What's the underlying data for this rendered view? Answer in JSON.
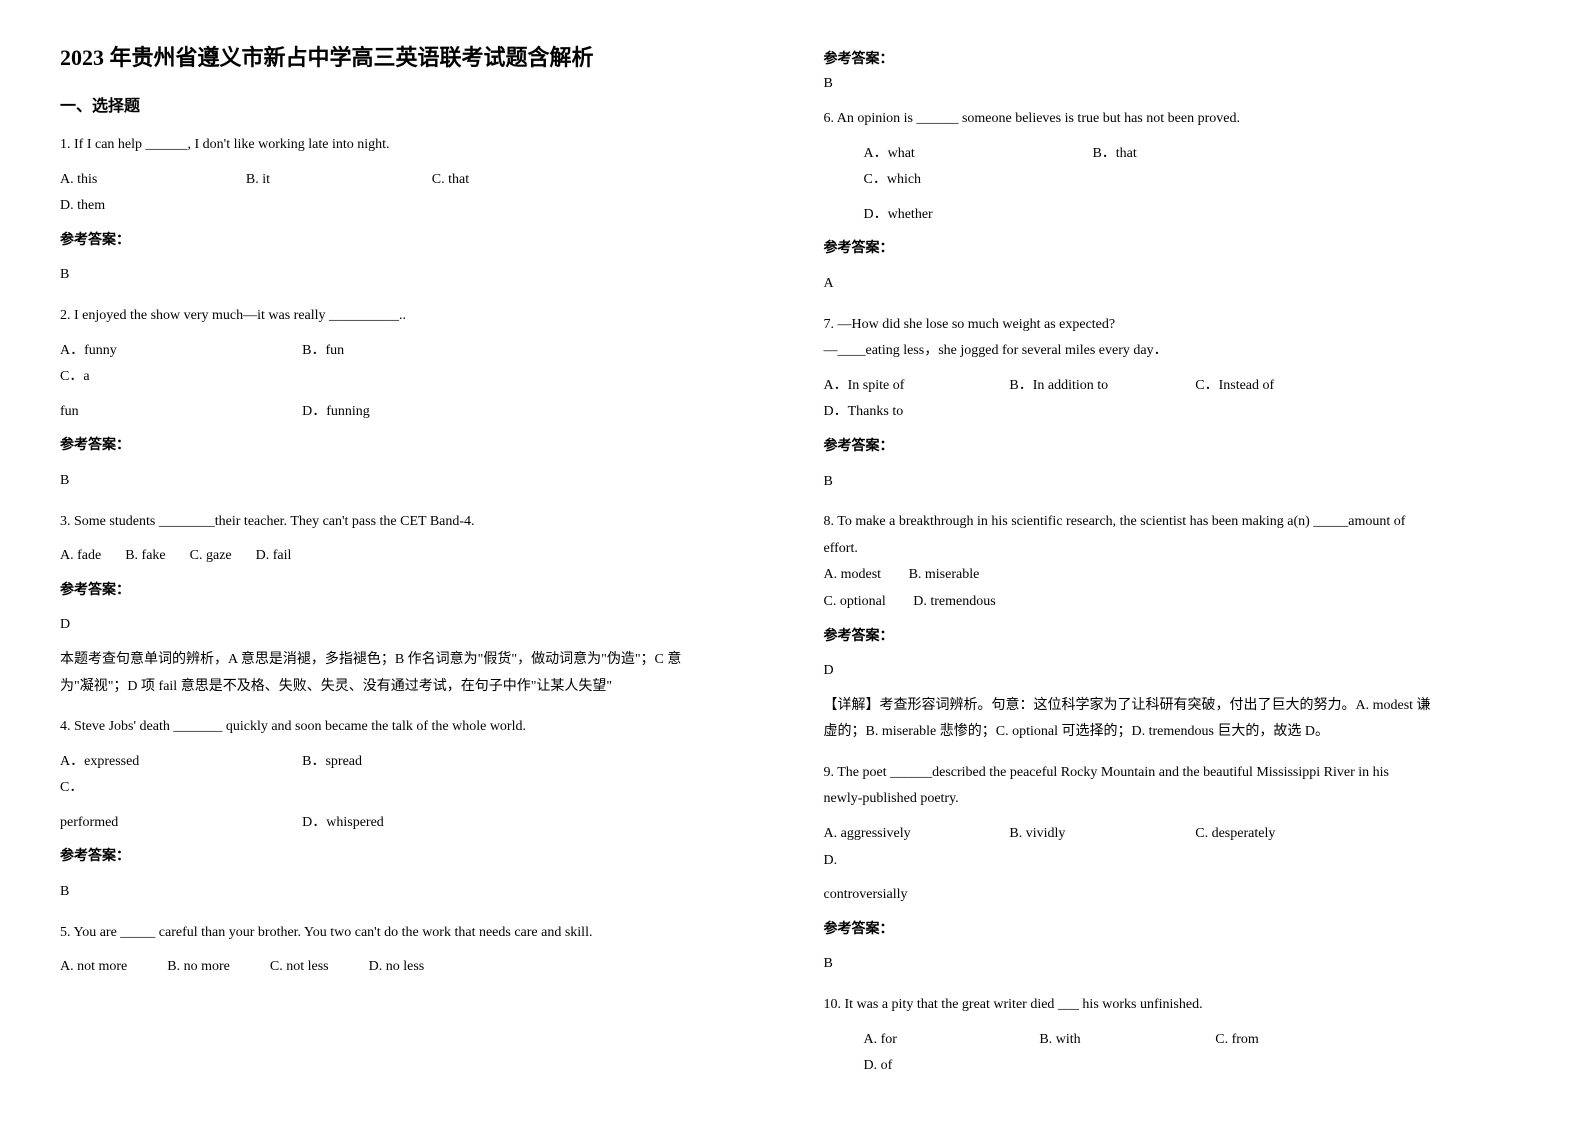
{
  "title": "2023 年贵州省遵义市新占中学高三英语联考试题含解析",
  "section1": "一、选择题",
  "answerLabel": "参考答案：",
  "left": {
    "q1": {
      "stem": "1. If I can help ______, I don't like working late into night.",
      "a": "A. this",
      "b": "B. it",
      "c": "C. that",
      "d": "D. them",
      "ans": "B"
    },
    "q2": {
      "stem": "2. I enjoyed the show very much—it was really __________..",
      "a": "A．funny",
      "b": "B．fun",
      "c": "C．a",
      "line2a": "fun",
      "line2b": "D．funning",
      "ans": "B"
    },
    "q3": {
      "stem": "3. Some students ________their teacher. They can't pass the CET Band-4.",
      "a": "A. fade",
      "b": "B. fake",
      "c": "C. gaze",
      "d": "D. fail",
      "ans": "D",
      "exp1": "本题考查句意单词的辨析，A 意思是消褪，多指褪色；B 作名词意为\"假货\"，做动词意为\"伪造\"；C 意",
      "exp2": "为\"凝视\"；D 项 fail 意思是不及格、失败、失灵、没有通过考试，在句子中作\"让某人失望\""
    },
    "q4": {
      "stem": "4. Steve Jobs' death _______ quickly and soon became the talk of the whole world.",
      "a": "A．expressed",
      "b": "B．spread",
      "c": "C．",
      "line2a": "performed",
      "line2b": "D．whispered",
      "ans": "B"
    },
    "q5": {
      "stem": "5. You are _____ careful than your brother. You two can't do the work that needs care and skill.",
      "a": "A. not more",
      "b": "B. no more",
      "c": "C. not less",
      "d": "D. no less"
    }
  },
  "right": {
    "q5ans": "B",
    "q6": {
      "stem": "6. An opinion is ______ someone believes is true but has not been proved.",
      "a": "A．what",
      "b": "B．that",
      "c": "C．which",
      "d": "D．whether",
      "ans": "A"
    },
    "q7": {
      "stem": "7. —How did she lose so much weight as expected?",
      "stem2": "—____eating less，she jogged for several miles every day．",
      "a": "A．In spite of",
      "b": "B．In addition to",
      "c": "C．Instead of",
      "d": "D．Thanks to",
      "ans": "B"
    },
    "q8": {
      "stem": "8. To make a breakthrough in his scientific research, the scientist has been making a(n) _____amount of",
      "stem2": "effort.",
      "a": "A. modest",
      "b": "B. miserable",
      "c": "C. optional",
      "d": "D. tremendous",
      "ans": "D",
      "exp1": "【详解】考查形容词辨析。句意：这位科学家为了让科研有突破，付出了巨大的努力。A. modest 谦",
      "exp2": "虚的；B. miserable 悲惨的；C. optional 可选择的；D. tremendous 巨大的，故选 D。"
    },
    "q9": {
      "stem": "9. The poet ______described the peaceful Rocky Mountain and the beautiful Mississippi River in his",
      "stem2": "newly-published poetry.",
      "a": "A. aggressively",
      "b": "B. vividly",
      "c": "C. desperately",
      "d": "D.",
      "line2": "controversially",
      "ans": "B"
    },
    "q10": {
      "stem": "10. It was a pity that the great writer died ___ his works unfinished.",
      "a": "A. for",
      "b": "B. with",
      "c": "C. from",
      "d": "D. of"
    }
  }
}
